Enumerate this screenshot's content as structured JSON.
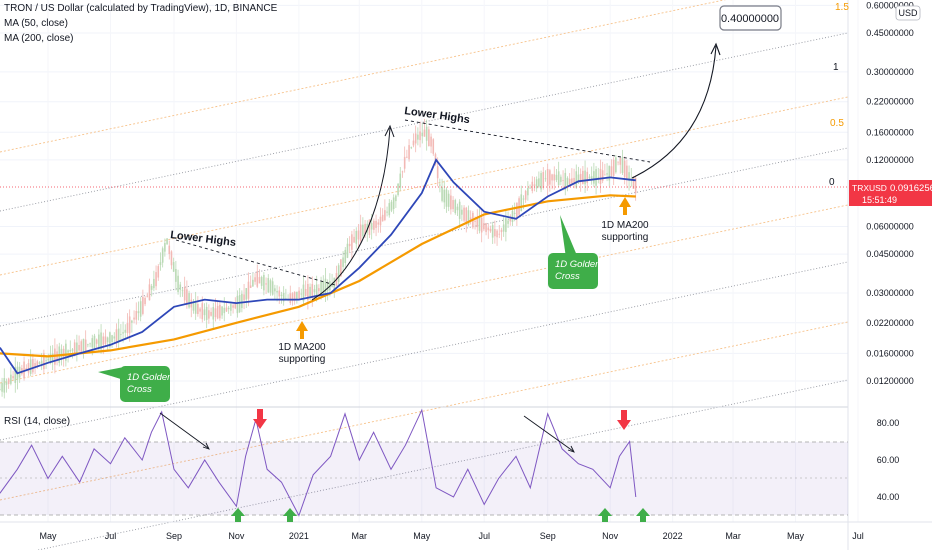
{
  "header": {
    "symbol_title": "TRON / US Dollar (calculated by TradingView), 1D, BINANCE",
    "ma50_label": "MA (50, close)",
    "ma200_label": "MA (200, close)",
    "rsi_label": "RSI (14, close)",
    "currency": "USD"
  },
  "price_tag": {
    "symbol": "TRXUSD",
    "value": "0.09162562",
    "countdown": "15:51:49",
    "color": "#f23645"
  },
  "target_box": {
    "label": "0.40000000"
  },
  "fib_labels": [
    "1.5",
    "1",
    "0.5",
    "0"
  ],
  "annotations": {
    "lower_highs_1": "Lower Highs",
    "lower_highs_2": "Lower Highs",
    "ma200_support_1_line1": "1D MA200",
    "ma200_support_1_line2": "supporting",
    "ma200_support_2_line1": "1D MA200",
    "ma200_support_2_line2": "supporting",
    "golden_cross_1_line1": "1D Golden",
    "golden_cross_1_line2": "Cross",
    "golden_cross_2_line1": "1D Golden",
    "golden_cross_2_line2": "Cross"
  },
  "colors": {
    "ma50": "#2e47b8",
    "ma200": "#f59a00",
    "rsi": "#7e57c2",
    "candle_up": "#b9d9b4",
    "candle_down": "#f2b8b4",
    "golden_box": "#3fae49",
    "up_arrow": "#3fae49",
    "down_arrow": "#f23645",
    "support_arrow": "#f59a00"
  },
  "chart_data": [
    {
      "type": "line",
      "title": "TRON / US Dollar (calculated by TradingView), 1D, BINANCE",
      "scale": "log",
      "y_ticks": [
        "0.60000000",
        "0.45000000",
        "0.30000000",
        "0.22000000",
        "0.16000000",
        "0.12000000",
        "0.06000000",
        "0.04500000",
        "0.03000000",
        "0.02200000",
        "0.01600000",
        "0.01200000"
      ],
      "x_ticks": [
        "May",
        "Jul",
        "Sep",
        "Nov",
        "2021",
        "Mar",
        "May",
        "Jul",
        "Sep",
        "Nov",
        "2022",
        "Mar",
        "May",
        "Jul"
      ],
      "x_tick_dates": [
        "2020-05-01",
        "2020-07-01",
        "2020-09-01",
        "2020-11-01",
        "2021-01-01",
        "2021-03-01",
        "2021-05-01",
        "2021-07-01",
        "2021-09-01",
        "2021-11-01",
        "2022-01-01",
        "2022-03-01",
        "2022-05-01",
        "2022-07-01"
      ],
      "series": [
        {
          "name": "TRXUSD",
          "x": [
            "2020-03-15",
            "2020-04-01",
            "2020-04-15",
            "2020-05-01",
            "2020-05-15",
            "2020-06-01",
            "2020-06-15",
            "2020-07-01",
            "2020-07-15",
            "2020-08-01",
            "2020-08-15",
            "2020-08-25",
            "2020-09-05",
            "2020-09-20",
            "2020-10-05",
            "2020-10-20",
            "2020-11-05",
            "2020-11-20",
            "2020-12-05",
            "2020-12-20",
            "2021-01-05",
            "2021-01-20",
            "2021-02-05",
            "2021-02-20",
            "2021-03-05",
            "2021-03-20",
            "2021-04-05",
            "2021-04-15",
            "2021-04-25",
            "2021-05-05",
            "2021-05-12",
            "2021-05-20",
            "2021-06-01",
            "2021-06-15",
            "2021-07-01",
            "2021-07-15",
            "2021-08-01",
            "2021-08-15",
            "2021-09-01",
            "2021-09-10",
            "2021-09-20",
            "2021-10-05",
            "2021-10-20",
            "2021-11-01",
            "2021-11-10",
            "2021-11-20",
            "2021-11-26"
          ],
          "values": [
            0.011,
            0.013,
            0.014,
            0.015,
            0.016,
            0.017,
            0.018,
            0.0185,
            0.02,
            0.026,
            0.035,
            0.052,
            0.033,
            0.026,
            0.024,
            0.025,
            0.027,
            0.035,
            0.032,
            0.028,
            0.03,
            0.031,
            0.033,
            0.05,
            0.058,
            0.062,
            0.078,
            0.12,
            0.15,
            0.16,
            0.14,
            0.085,
            0.075,
            0.066,
            0.06,
            0.055,
            0.07,
            0.09,
            0.1,
            0.1,
            0.095,
            0.1,
            0.1,
            0.105,
            0.12,
            0.1,
            0.0916
          ]
        },
        {
          "name": "MA (50, close)",
          "x": [
            "2020-03-15",
            "2020-04-01",
            "2020-05-01",
            "2020-06-01",
            "2020-07-01",
            "2020-08-01",
            "2020-09-01",
            "2020-10-01",
            "2020-11-01",
            "2020-12-01",
            "2021-01-01",
            "2021-02-01",
            "2021-03-01",
            "2021-04-01",
            "2021-05-01",
            "2021-05-15",
            "2021-06-01",
            "2021-07-01",
            "2021-08-01",
            "2021-09-01",
            "2021-10-01",
            "2021-11-01",
            "2021-11-26"
          ],
          "values": [
            0.017,
            0.013,
            0.0145,
            0.016,
            0.0175,
            0.02,
            0.026,
            0.028,
            0.027,
            0.028,
            0.028,
            0.03,
            0.039,
            0.055,
            0.085,
            0.12,
            0.095,
            0.07,
            0.065,
            0.082,
            0.096,
            0.1,
            0.097
          ]
        },
        {
          "name": "MA (200, close)",
          "x": [
            "2020-03-15",
            "2020-05-01",
            "2020-07-01",
            "2020-09-01",
            "2020-11-01",
            "2021-01-01",
            "2021-03-01",
            "2021-05-01",
            "2021-07-01",
            "2021-09-01",
            "2021-11-01",
            "2021-11-26"
          ],
          "values": [
            0.016,
            0.0155,
            0.0165,
            0.0185,
            0.022,
            0.026,
            0.034,
            0.05,
            0.068,
            0.078,
            0.083,
            0.082
          ]
        }
      ]
    },
    {
      "type": "line",
      "title": "RSI (14, close)",
      "y_ticks": [
        "80.00",
        "60.00",
        "40.00"
      ],
      "x_ticks": [
        "May",
        "Jul",
        "Sep",
        "Nov",
        "2021",
        "Mar",
        "May",
        "Jul",
        "Sep",
        "Nov",
        "2022",
        "Mar",
        "May",
        "Jul"
      ],
      "series": [
        {
          "name": "RSI (14, close)",
          "x": [
            "2020-03-15",
            "2020-04-01",
            "2020-04-15",
            "2020-05-01",
            "2020-05-15",
            "2020-06-01",
            "2020-06-15",
            "2020-07-01",
            "2020-07-15",
            "2020-08-01",
            "2020-08-10",
            "2020-08-20",
            "2020-09-01",
            "2020-09-15",
            "2020-10-01",
            "2020-10-15",
            "2020-11-01",
            "2020-11-10",
            "2020-11-20",
            "2020-12-01",
            "2020-12-15",
            "2021-01-01",
            "2021-01-15",
            "2021-02-01",
            "2021-02-15",
            "2021-03-01",
            "2021-03-15",
            "2021-04-01",
            "2021-04-15",
            "2021-05-01",
            "2021-05-15",
            "2021-06-01",
            "2021-06-15",
            "2021-07-01",
            "2021-07-15",
            "2021-08-01",
            "2021-08-15",
            "2021-09-01",
            "2021-09-15",
            "2021-10-01",
            "2021-10-15",
            "2021-11-01",
            "2021-11-10",
            "2021-11-20",
            "2021-11-26"
          ],
          "values": [
            42,
            55,
            68,
            50,
            62,
            48,
            66,
            58,
            72,
            60,
            75,
            86,
            55,
            45,
            60,
            48,
            35,
            62,
            82,
            55,
            48,
            30,
            52,
            62,
            85,
            60,
            75,
            55,
            68,
            87,
            45,
            40,
            55,
            36,
            50,
            62,
            45,
            85,
            66,
            58,
            55,
            45,
            62,
            70,
            40
          ]
        }
      ]
    }
  ]
}
